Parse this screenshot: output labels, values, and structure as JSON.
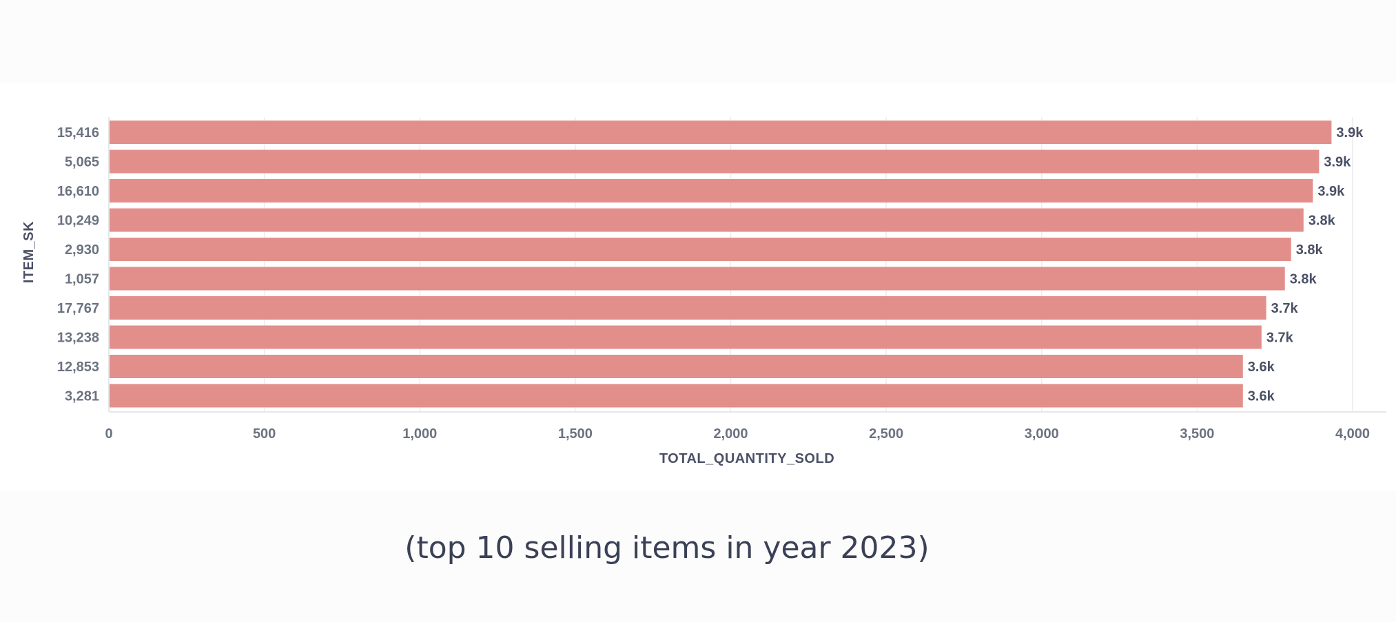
{
  "chart_data": {
    "type": "bar",
    "orientation": "horizontal",
    "categories": [
      "15,416",
      "5,065",
      "16,610",
      "10,249",
      "2,930",
      "1,057",
      "17,767",
      "13,238",
      "12,853",
      "3,281"
    ],
    "values": [
      3930,
      3890,
      3870,
      3840,
      3800,
      3780,
      3720,
      3705,
      3645,
      3645
    ],
    "value_labels": [
      "3.9k",
      "3.9k",
      "3.9k",
      "3.8k",
      "3.8k",
      "3.8k",
      "3.7k",
      "3.7k",
      "3.6k",
      "3.6k"
    ],
    "x_ticks": [
      0,
      500,
      1000,
      1500,
      2000,
      2500,
      3000,
      3500,
      4000
    ],
    "x_tick_labels": [
      "0",
      "500",
      "1,000",
      "1,500",
      "2,000",
      "2,500",
      "3,000",
      "3,500",
      "4,000"
    ],
    "xlabel": "TOTAL_QUANTITY_SOLD",
    "ylabel": "ITEM_SK",
    "xlim": [
      0,
      4100
    ],
    "grid": "vertical",
    "bar_color": "#e28f8b"
  },
  "caption": "(top 10 selling items in year 2023)"
}
